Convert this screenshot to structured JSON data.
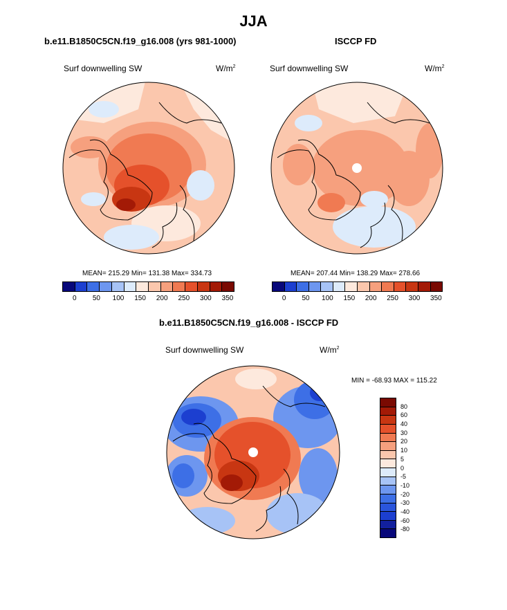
{
  "season": "JJA",
  "panels": {
    "model": {
      "title": "b.e11.B1850C5CN.f19_g16.008 (yrs 981-1000)",
      "variable": "Surf downwelling SW",
      "units_base": "W/m",
      "units_exp": "2",
      "stats": "MEAN= 215.29  Min= 131.38  Max= 334.73"
    },
    "obs": {
      "title": "ISCCP FD",
      "variable": "Surf downwelling SW",
      "units_base": "W/m",
      "units_exp": "2",
      "stats": "MEAN= 207.44  Min= 138.29  Max= 278.66"
    },
    "diff": {
      "title": "b.e11.B1850C5CN.f19_g16.008 - ISCCP FD",
      "variable": "Surf downwelling SW",
      "units_base": "W/m",
      "units_exp": "2",
      "stats": "MIN = -68.93 MAX = 115.22"
    }
  },
  "colorbar_abs": {
    "colors": [
      "#08087a",
      "#1c3fd0",
      "#3d6fe6",
      "#6d96ef",
      "#a7c3f6",
      "#ddebfb",
      "#fde9dd",
      "#fbc7ad",
      "#f6a07e",
      "#f07a52",
      "#e5512b",
      "#c83612",
      "#a31a06",
      "#7a0a02"
    ],
    "tick_labels": [
      "0",
      "50",
      "100",
      "150",
      "200",
      "250",
      "300",
      "350"
    ]
  },
  "colorbar_diff": {
    "colors": [
      "#7a0a02",
      "#a31a06",
      "#c83612",
      "#e5512b",
      "#f07a52",
      "#f6a07e",
      "#fbc7ad",
      "#fde9dd",
      "#ddebfb",
      "#a7c3f6",
      "#6d96ef",
      "#3d6fe6",
      "#2a55dc",
      "#1c3fd0",
      "#12209e",
      "#08087a"
    ],
    "tick_labels": [
      "80",
      "60",
      "40",
      "30",
      "20",
      "10",
      "5",
      "0",
      "-5",
      "-10",
      "-20",
      "-30",
      "-40",
      "-60",
      "-80"
    ]
  }
}
